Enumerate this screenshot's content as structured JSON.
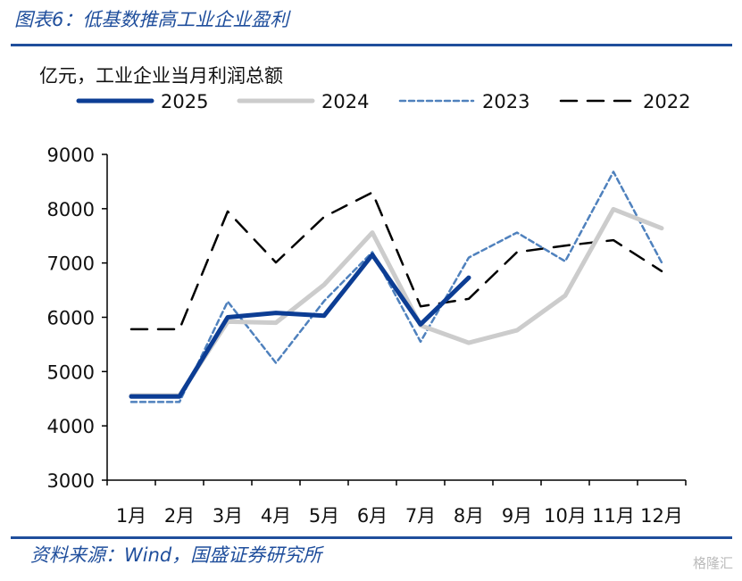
{
  "figure_title": "图表6：低基数推高工业企业盈利",
  "source": "资料来源：Wind，国盛证券研究所",
  "watermark": "格隆汇",
  "chart_data": {
    "type": "line",
    "ylabel": "亿元，工业企业当月利润总额",
    "categories": [
      "1月",
      "2月",
      "3月",
      "4月",
      "5月",
      "6月",
      "7月",
      "8月",
      "9月",
      "10月",
      "11月",
      "12月"
    ],
    "ylim": [
      3000,
      9000
    ],
    "yticks": [
      3000,
      4000,
      5000,
      6000,
      7000,
      8000,
      9000
    ],
    "grid": false,
    "legend_position": "top",
    "series": [
      {
        "name": "2025",
        "color": "#0c3d94",
        "style": "solid-thick",
        "values": [
          4540,
          4540,
          6000,
          6080,
          6030,
          7150,
          5870,
          6730,
          null,
          null,
          null,
          null
        ]
      },
      {
        "name": "2024",
        "color": "#cccccc",
        "style": "solid-thick",
        "values": [
          4560,
          4560,
          5920,
          5900,
          6600,
          7560,
          5850,
          5530,
          5760,
          6400,
          7990,
          7640
        ]
      },
      {
        "name": "2023",
        "color": "#4f81bd",
        "style": "dotted",
        "values": [
          4440,
          4440,
          6290,
          5160,
          6300,
          7200,
          5550,
          7100,
          7560,
          7030,
          8680,
          7010
        ]
      },
      {
        "name": "2022",
        "color": "#000000",
        "style": "dashed",
        "values": [
          5780,
          5780,
          7950,
          7010,
          7850,
          8300,
          6200,
          6340,
          7200,
          7320,
          7420,
          6850
        ]
      }
    ]
  }
}
